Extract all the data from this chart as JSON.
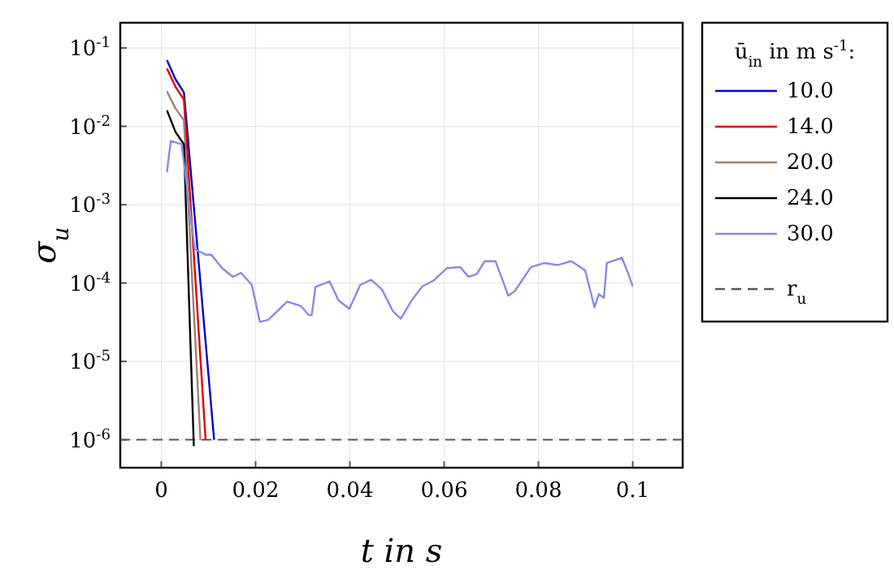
{
  "chart_data": {
    "type": "line",
    "xlabel": "t in s",
    "ylabel": "σ$_{u}$",
    "legend_title": "ū$_{in}$ in m s$^{-1}$:",
    "log": "y",
    "grid": true,
    "legend": "right",
    "line_style": "solid",
    "marker": "none",
    "xlim": [
      -0.0087,
      0.1106
    ],
    "xticks": [
      0,
      0.02,
      0.04,
      0.06,
      0.08,
      0.1
    ],
    "ylim": [
      4.4e-07,
      0.21
    ],
    "yticks": [
      {
        "value": 1e-06,
        "label": "10$^{-6}$"
      },
      {
        "value": 1e-05,
        "label": "10$^{-5}$"
      },
      {
        "value": 0.0001,
        "label": "10$^{-4}$"
      },
      {
        "value": 0.001,
        "label": "10$^{-3}$"
      },
      {
        "value": 0.01,
        "label": "10$^{-2}$"
      },
      {
        "value": 0.1,
        "label": "10$^{-1}$"
      }
    ],
    "ref_lines": [
      {
        "axis": "y",
        "value": 1e-06,
        "label": "r$_{u}$",
        "color": "#555555",
        "line_style": "dashed"
      }
    ],
    "series": [
      {
        "name": "10.0",
        "color": "#0000cc",
        "x": [
          0.0012,
          0.003,
          0.0048,
          0.0112
        ],
        "values": [
          0.07,
          0.04,
          0.027,
          1e-06
        ]
      },
      {
        "name": "14.0",
        "color": "#e00000",
        "x": [
          0.0012,
          0.003,
          0.0048,
          0.0094
        ],
        "values": [
          0.055,
          0.032,
          0.022,
          1e-06
        ]
      },
      {
        "name": "20.0",
        "color": "#a08070",
        "x": [
          0.0012,
          0.003,
          0.0048,
          0.0083
        ],
        "values": [
          0.028,
          0.017,
          0.012,
          1e-06
        ]
      },
      {
        "name": "24.0",
        "color": "#000000",
        "x": [
          0.0012,
          0.003,
          0.0048,
          0.0069
        ],
        "values": [
          0.016,
          0.0085,
          0.0059,
          8.3e-07
        ]
      },
      {
        "name": "30.0",
        "color": "#8888ee",
        "x": [
          0.0012,
          0.002,
          0.0043,
          0.0071,
          0.0094,
          0.0106,
          0.0129,
          0.0152,
          0.0169,
          0.0192,
          0.0209,
          0.0227,
          0.0267,
          0.0296,
          0.0313,
          0.0319,
          0.0327,
          0.0357,
          0.0376,
          0.0399,
          0.0422,
          0.0445,
          0.0468,
          0.0491,
          0.0508,
          0.0531,
          0.0554,
          0.0577,
          0.0606,
          0.0634,
          0.0652,
          0.0669,
          0.0686,
          0.0709,
          0.0736,
          0.075,
          0.0784,
          0.0813,
          0.0841,
          0.087,
          0.0899,
          0.0919,
          0.0928,
          0.0939,
          0.0945,
          0.0977,
          0.0991,
          0.1
        ],
        "values": [
          0.0026,
          0.0065,
          0.0059,
          0.00027,
          0.00023,
          0.00023,
          0.000155,
          0.00012,
          0.000135,
          9.5e-05,
          3.2e-05,
          3.4e-05,
          5.8e-05,
          5.1e-05,
          3.9e-05,
          3.9e-05,
          8.9e-05,
          0.000105,
          6e-05,
          4.7e-05,
          9.5e-05,
          0.00011,
          8.3e-05,
          4.4e-05,
          3.5e-05,
          6e-05,
          9.1e-05,
          0.000107,
          0.000155,
          0.00016,
          0.00012,
          0.00013,
          0.00019,
          0.00019,
          6.9e-05,
          7.9e-05,
          0.00016,
          0.00018,
          0.00017,
          0.00019,
          0.000145,
          4.9e-05,
          7.2e-05,
          6.5e-05,
          0.00018,
          0.00021,
          0.00013,
          9.1e-05
        ]
      }
    ]
  }
}
